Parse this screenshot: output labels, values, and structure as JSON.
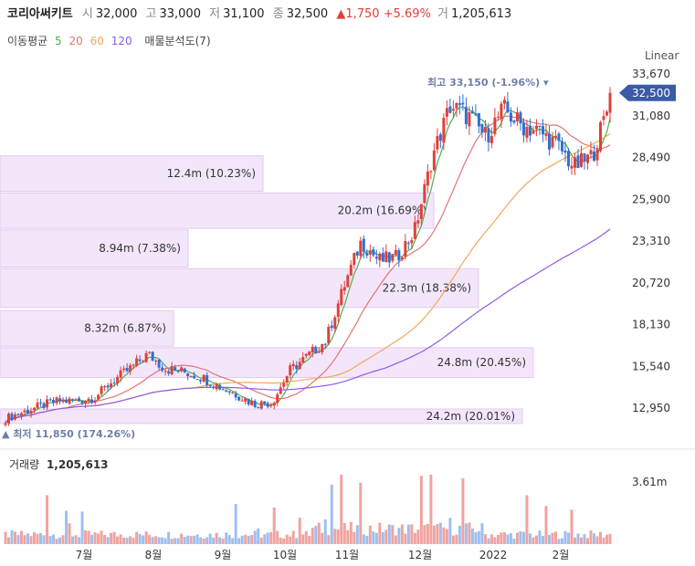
{
  "header": {
    "name": "코리아써키트",
    "open_label": "시",
    "open": "32,000",
    "high_label": "고",
    "high": "33,000",
    "low_label": "저",
    "low": "31,100",
    "close_label": "종",
    "close": "32,500",
    "change": "▲1,750 +5.69%",
    "volume_label": "거",
    "volume": "1,205,613"
  },
  "indicators": {
    "ma_label": "이동평균",
    "ma5": "5",
    "ma20": "20",
    "ma60": "60",
    "ma120": "120",
    "vp_label": "매물분석도(7)"
  },
  "scale_label": "Linear",
  "colors": {
    "up": "#e0403a",
    "down": "#2f6fd6",
    "ma5": "#4caf50",
    "ma20": "#e57373",
    "ma60": "#f5a65b",
    "ma120": "#8e5ce6",
    "vp": "#f3e6fa",
    "price_tag": "#3b5aa8"
  },
  "chart_data": [
    {
      "type": "candlestick",
      "title": "",
      "y_ticks": [
        "33,670",
        "31,080",
        "28,490",
        "25,900",
        "23,310",
        "20,720",
        "18,130",
        "15,540",
        "12,950"
      ],
      "ylim": [
        11200,
        34300
      ],
      "x_ticks": [
        "7월",
        "8월",
        "9월",
        "10월",
        "11월",
        "12월",
        "2022",
        "2월"
      ],
      "last_price": "32,500",
      "max_annotation": "최고 33,150 (-1.96%)",
      "min_annotation": "최저 11,850 (174.26%)",
      "volume_profile": [
        {
          "label": "24.2m (20.01%)",
          "price_low": 12000,
          "price_high": 12900,
          "share": 20.01
        },
        {
          "label": "24.8m (20.45%)",
          "price_low": 14850,
          "price_high": 16700,
          "share": 20.45
        },
        {
          "label": "8.32m (6.87%)",
          "price_low": 16800,
          "price_high": 19000,
          "share": 6.87
        },
        {
          "label": "22.3m (18.38%)",
          "price_low": 19200,
          "price_high": 21600,
          "share": 18.38
        },
        {
          "label": "8.94m (7.38%)",
          "price_low": 21700,
          "price_high": 24000,
          "share": 7.38
        },
        {
          "label": "20.2m (16.69%)",
          "price_low": 24100,
          "price_high": 26300,
          "share": 16.69
        },
        {
          "label": "12.4m (10.23%)",
          "price_low": 26400,
          "price_high": 28600,
          "share": 10.23
        }
      ],
      "anchors": [
        12300,
        12700,
        13100,
        13400,
        13400,
        13600,
        14600,
        15400,
        16300,
        15400,
        15200,
        14900,
        14300,
        13800,
        13200,
        13300,
        15300,
        16200,
        17100,
        20400,
        23300,
        22100,
        22300,
        23900,
        28500,
        31700,
        31100,
        29800,
        31500,
        30500,
        30100,
        29300,
        27900,
        28600,
        32000
      ]
    },
    {
      "type": "bar",
      "title": "거래량",
      "value": "1,205,613",
      "y_tick": "3.61m",
      "ylim": [
        0,
        4000000
      ]
    }
  ]
}
